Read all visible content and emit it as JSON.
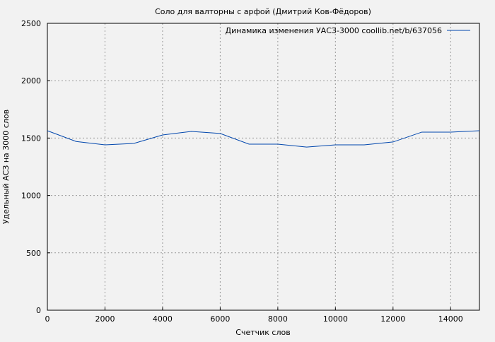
{
  "chart_data": {
    "type": "line",
    "title": "Соло для валторны с арфой (Дмитрий Ков-Фёдоров)",
    "xlabel": "Счетчик слов",
    "ylabel": "Удельный АСЗ на 3000 слов",
    "xlim": [
      0,
      15000
    ],
    "ylim": [
      0,
      2500
    ],
    "xticks": [
      0,
      2000,
      4000,
      6000,
      8000,
      10000,
      12000,
      14000
    ],
    "yticks": [
      0,
      500,
      1000,
      1500,
      2000,
      2500
    ],
    "grid": true,
    "legend_position": "top-right",
    "series": [
      {
        "name": "Динамика изменения УАСЗ-3000 coollib.net/b/637056",
        "color": "#0046ad",
        "x": [
          0,
          1000,
          2000,
          3000,
          4000,
          5000,
          6000,
          7000,
          8000,
          9000,
          10000,
          11000,
          12000,
          13000,
          14000,
          15000
        ],
        "y": [
          1564,
          1470,
          1441,
          1453,
          1527,
          1558,
          1540,
          1447,
          1447,
          1422,
          1441,
          1441,
          1466,
          1552,
          1552,
          1564
        ]
      }
    ]
  }
}
